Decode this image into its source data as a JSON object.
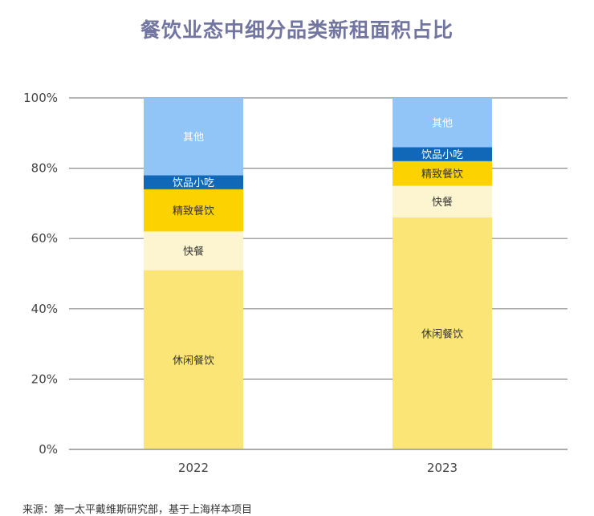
{
  "chart_data": {
    "type": "bar",
    "stacked": true,
    "title": "餐饮业态中细分品类新租面积占比",
    "xlabel": "",
    "ylabel": "",
    "ylim": [
      0,
      100
    ],
    "yticks": [
      "0%",
      "20%",
      "40%",
      "60%",
      "80%",
      "100%"
    ],
    "ytick_values": [
      0,
      20,
      40,
      60,
      80,
      100
    ],
    "grid": true,
    "categories": [
      "2022",
      "2023"
    ],
    "series": [
      {
        "name": "休闲餐饮",
        "values": [
          51,
          66
        ],
        "color": "#fbe577",
        "label_color": "#333333"
      },
      {
        "name": "快餐",
        "values": [
          11,
          9
        ],
        "color": "#fdf5cf",
        "label_color": "#333333"
      },
      {
        "name": "精致餐饮",
        "values": [
          12,
          7
        ],
        "color": "#fcd300",
        "label_color": "#333333"
      },
      {
        "name": "饮品小吃",
        "values": [
          4,
          4
        ],
        "color": "#1168b8",
        "label_color": "#ffffff"
      },
      {
        "name": "其他",
        "values": [
          22,
          14
        ],
        "color": "#92c5f7",
        "label_color": "#ffffff"
      }
    ]
  },
  "source": "来源：第一太平戴维斯研究部，基于上海样本项目"
}
